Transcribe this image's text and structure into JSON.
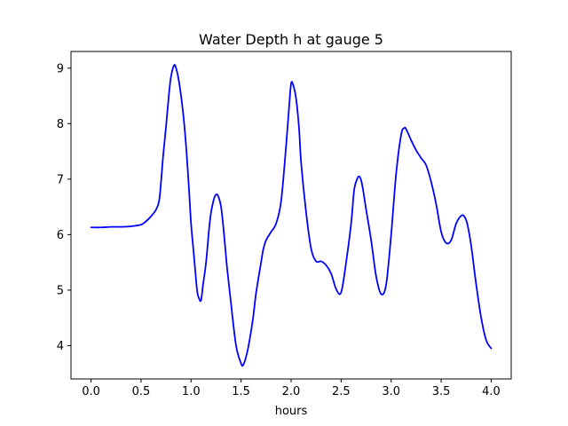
{
  "chart_data": {
    "type": "line",
    "title": "Water Depth h at gauge 5",
    "xlabel": "hours",
    "ylabel": "",
    "xlim": [
      -0.2,
      4.2
    ],
    "ylim": [
      3.4,
      9.3
    ],
    "xticks": [
      0.0,
      0.5,
      1.0,
      1.5,
      2.0,
      2.5,
      3.0,
      3.5,
      4.0
    ],
    "xtick_labels": [
      "0.0",
      "0.5",
      "1.0",
      "1.5",
      "2.0",
      "2.5",
      "3.0",
      "3.5",
      "4.0"
    ],
    "yticks": [
      4,
      5,
      6,
      7,
      8,
      9
    ],
    "ytick_labels": [
      "4",
      "5",
      "6",
      "7",
      "8",
      "9"
    ],
    "grid": false,
    "series": [
      {
        "color": "#0000ff",
        "x": [
          0.0,
          0.1,
          0.2,
          0.3,
          0.4,
          0.5,
          0.55,
          0.6,
          0.65,
          0.68,
          0.7,
          0.72,
          0.75,
          0.78,
          0.8,
          0.83,
          0.85,
          0.88,
          0.92,
          0.95,
          0.98,
          1.0,
          1.03,
          1.06,
          1.08,
          1.1,
          1.12,
          1.15,
          1.18,
          1.2,
          1.23,
          1.25,
          1.27,
          1.3,
          1.33,
          1.36,
          1.4,
          1.45,
          1.5,
          1.52,
          1.55,
          1.58,
          1.62,
          1.65,
          1.7,
          1.72,
          1.75,
          1.8,
          1.85,
          1.9,
          1.95,
          1.98,
          2.0,
          2.02,
          2.05,
          2.08,
          2.1,
          2.15,
          2.2,
          2.25,
          2.3,
          2.35,
          2.4,
          2.45,
          2.5,
          2.55,
          2.6,
          2.63,
          2.66,
          2.68,
          2.7,
          2.72,
          2.75,
          2.8,
          2.85,
          2.9,
          2.95,
          3.0,
          3.05,
          3.1,
          3.13,
          3.15,
          3.2,
          3.25,
          3.3,
          3.35,
          3.4,
          3.45,
          3.5,
          3.55,
          3.6,
          3.65,
          3.7,
          3.73,
          3.76,
          3.8,
          3.85,
          3.9,
          3.95,
          4.0
        ],
        "y": [
          6.13,
          6.13,
          6.14,
          6.14,
          6.15,
          6.18,
          6.24,
          6.33,
          6.45,
          6.6,
          6.95,
          7.4,
          7.95,
          8.55,
          8.85,
          9.05,
          9.0,
          8.75,
          8.2,
          7.6,
          6.8,
          6.2,
          5.6,
          5.0,
          4.85,
          4.82,
          5.1,
          5.5,
          6.1,
          6.4,
          6.65,
          6.72,
          6.7,
          6.5,
          6.0,
          5.4,
          4.75,
          4.0,
          3.68,
          3.65,
          3.8,
          4.05,
          4.5,
          4.95,
          5.5,
          5.72,
          5.9,
          6.05,
          6.2,
          6.6,
          7.6,
          8.3,
          8.72,
          8.7,
          8.45,
          7.9,
          7.3,
          6.4,
          5.75,
          5.52,
          5.52,
          5.45,
          5.3,
          5.02,
          4.96,
          5.5,
          6.2,
          6.8,
          7.0,
          7.05,
          6.98,
          6.8,
          6.45,
          5.9,
          5.25,
          4.93,
          5.1,
          6.0,
          7.1,
          7.8,
          7.92,
          7.9,
          7.7,
          7.52,
          7.38,
          7.25,
          6.95,
          6.55,
          6.05,
          5.85,
          5.9,
          6.2,
          6.34,
          6.33,
          6.2,
          5.8,
          5.1,
          4.5,
          4.1,
          3.95
        ]
      }
    ]
  }
}
